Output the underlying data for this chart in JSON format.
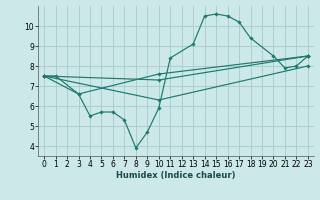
{
  "xlabel": "Humidex (Indice chaleur)",
  "xlim": [
    -0.5,
    23.5
  ],
  "ylim": [
    3.5,
    11.0
  ],
  "yticks": [
    4,
    5,
    6,
    7,
    8,
    9,
    10
  ],
  "xticks": [
    0,
    1,
    2,
    3,
    4,
    5,
    6,
    7,
    8,
    9,
    10,
    11,
    12,
    13,
    14,
    15,
    16,
    17,
    18,
    19,
    20,
    21,
    22,
    23
  ],
  "bg_color": "#cde8e8",
  "grid_color": "#aacece",
  "line_color": "#1a7a6e",
  "lines": [
    {
      "x": [
        0,
        1,
        3,
        4,
        5,
        6,
        7,
        8,
        9,
        10,
        11,
        13,
        14,
        15,
        16,
        17,
        18,
        20,
        21,
        22,
        23
      ],
      "y": [
        7.5,
        7.5,
        6.6,
        5.5,
        5.7,
        5.7,
        5.3,
        3.9,
        4.7,
        5.9,
        8.4,
        9.1,
        10.5,
        10.6,
        10.5,
        10.2,
        9.4,
        8.5,
        7.9,
        8.0,
        8.5
      ]
    },
    {
      "x": [
        0,
        3,
        10,
        23
      ],
      "y": [
        7.5,
        6.6,
        7.6,
        8.5
      ]
    },
    {
      "x": [
        0,
        10,
        23
      ],
      "y": [
        7.5,
        7.3,
        8.5
      ]
    },
    {
      "x": [
        0,
        10,
        23
      ],
      "y": [
        7.5,
        6.3,
        8.0
      ]
    }
  ]
}
